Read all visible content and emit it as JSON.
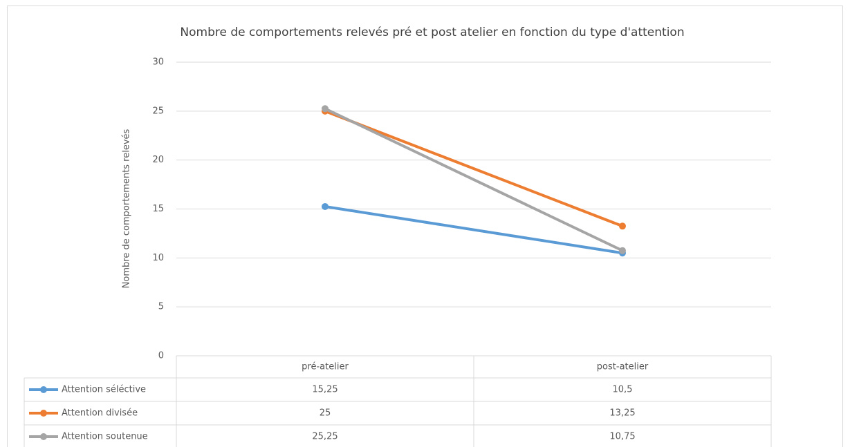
{
  "chart_data": {
    "type": "line",
    "title": "Nombre  de comportements  relevés pré et post atelier en fonction du type d'attention",
    "y_label": "Nombre de comportements relevés",
    "categories": [
      "pré-atelier",
      "post-atelier"
    ],
    "series": [
      {
        "name": "Attention séléctive",
        "color": "#5b9bd5",
        "values": [
          15.25,
          10.5
        ],
        "value_labels": [
          "15,25",
          "10,5"
        ]
      },
      {
        "name": "Attention divisée",
        "color": "#ed7d31",
        "values": [
          25,
          13.25
        ],
        "value_labels": [
          "25",
          "13,25"
        ]
      },
      {
        "name": "Attention soutenue",
        "color": "#a5a5a5",
        "values": [
          25.25,
          10.75
        ],
        "value_labels": [
          "25,25",
          "10,75"
        ]
      }
    ],
    "ylim": [
      0,
      30
    ],
    "yticks": [
      0,
      5,
      10,
      15,
      20,
      25,
      30
    ],
    "grid": true,
    "data_table": true
  }
}
